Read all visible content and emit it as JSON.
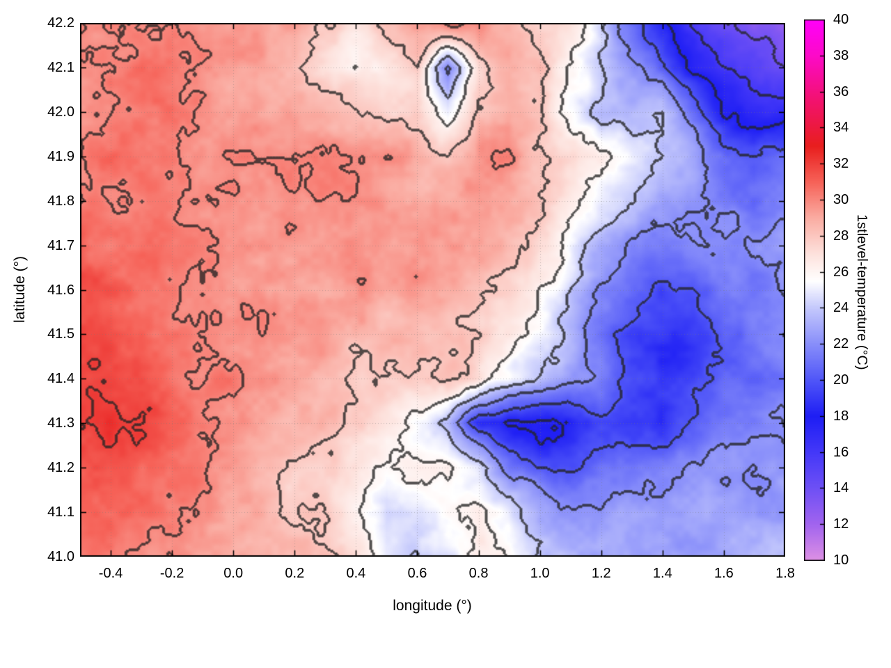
{
  "chart_data": {
    "type": "heatmap",
    "title": "",
    "xlabel": "longitude (°)",
    "ylabel": "latitude (°)",
    "colorbar_label": "1stlevel-temperature (°C)",
    "x_range": [
      -0.5,
      1.8
    ],
    "y_range": [
      41.0,
      42.2
    ],
    "color_range": [
      10,
      40
    ],
    "contour_interval": 2,
    "grid_lines": "dotted",
    "x_ticks": {
      "values": [
        -0.4,
        -0.2,
        0.0,
        0.2,
        0.4,
        0.6,
        0.8,
        1.0,
        1.2,
        1.4,
        1.6,
        1.8
      ],
      "labels": [
        "-0.4",
        "-0.2",
        "0.0",
        "0.2",
        "0.4",
        "0.6",
        "0.8",
        "1.0",
        "1.2",
        "1.4",
        "1.6",
        "1.8"
      ]
    },
    "y_ticks": {
      "values": [
        41.0,
        41.1,
        41.2,
        41.3,
        41.4,
        41.5,
        41.6,
        41.7,
        41.8,
        41.9,
        42.0,
        42.1,
        42.2
      ],
      "labels": [
        "41.0",
        "41.1",
        "41.2",
        "41.3",
        "41.4",
        "41.5",
        "41.6",
        "41.7",
        "41.8",
        "41.9",
        "42.0",
        "42.1",
        "42.2"
      ]
    },
    "colorbar_ticks": {
      "values": [
        10,
        12,
        14,
        16,
        18,
        20,
        22,
        24,
        26,
        28,
        30,
        32,
        34,
        36,
        38,
        40
      ],
      "labels": [
        "10",
        "12",
        "14",
        "16",
        "18",
        "20",
        "22",
        "24",
        "26",
        "28",
        "30",
        "32",
        "34",
        "36",
        "38",
        "40"
      ]
    },
    "grid": {
      "lon_min": -0.5,
      "lon_max": 1.8,
      "lon_step": 0.1,
      "lat_min": 41.0,
      "lat_max": 42.2,
      "lat_step": 0.1,
      "orientation": "rows run north (42.2) to south (41.0); columns run west (-0.5) to east (1.8); values are temperature in °C",
      "values": [
        [
          30,
          30,
          30,
          30,
          29.5,
          29.5,
          29,
          29,
          28,
          27.5,
          28.5,
          29,
          29.5,
          29.5,
          28.5,
          27.5,
          27,
          25,
          21,
          18,
          16,
          14,
          13,
          13
        ],
        [
          30,
          30,
          30.5,
          30,
          29.5,
          29,
          29,
          28.5,
          27.5,
          26,
          26.5,
          27.5,
          21,
          27,
          29,
          28.5,
          26,
          23.5,
          22,
          20,
          17,
          15.5,
          14.5,
          14
        ],
        [
          30,
          30,
          30,
          30,
          29.5,
          29,
          29,
          29,
          28.5,
          27.5,
          27,
          27.5,
          25,
          28.5,
          29,
          28,
          25.5,
          23.5,
          23,
          23.5,
          21,
          18,
          17,
          16.5
        ],
        [
          30,
          30.5,
          30,
          30,
          29.5,
          30,
          30,
          30.5,
          30.5,
          30,
          30,
          29.5,
          29,
          30,
          30,
          28,
          27,
          26,
          24.5,
          23.5,
          22.5,
          21,
          20,
          21
        ],
        [
          30,
          30,
          30,
          30,
          30,
          30,
          30,
          30,
          30,
          30,
          29.5,
          29,
          29,
          29.5,
          29,
          28,
          26,
          24.5,
          23.5,
          22.5,
          22,
          21.5,
          21,
          22
        ],
        [
          30.5,
          30,
          30,
          30,
          30,
          30,
          30,
          30,
          29.5,
          29,
          29,
          29.5,
          29.5,
          29,
          28,
          26.5,
          25,
          23,
          21.5,
          21,
          21.5,
          22,
          22,
          22.5
        ],
        [
          31.5,
          31,
          30.5,
          30,
          30,
          29.5,
          29.5,
          29.5,
          29,
          29,
          29,
          29.5,
          29,
          28.5,
          27.5,
          26,
          24,
          22,
          20.5,
          19.5,
          20,
          21,
          21.5,
          22
        ],
        [
          32,
          31.5,
          30.5,
          30,
          30,
          29.5,
          29.5,
          29,
          29,
          29,
          29,
          29,
          28.5,
          28,
          27,
          25.5,
          23.5,
          21.5,
          19.5,
          19,
          19.5,
          20.5,
          21,
          21.5
        ],
        [
          32,
          31.5,
          31,
          30.5,
          30,
          30,
          29.5,
          29,
          28.5,
          28,
          27.5,
          27.5,
          27.5,
          27,
          25.5,
          24,
          23,
          22,
          20,
          18.5,
          19,
          20.5,
          21,
          21.5
        ],
        [
          32,
          32.5,
          32,
          31,
          30.5,
          30,
          29.5,
          29,
          28.5,
          28,
          26.5,
          25,
          23.5,
          18.5,
          17.5,
          17.5,
          18.5,
          19.5,
          19,
          18.5,
          20,
          21.5,
          22,
          22.5
        ],
        [
          31.5,
          31.5,
          31,
          30.5,
          30,
          29.5,
          29,
          28.5,
          28,
          27,
          25.5,
          26.5,
          26.5,
          25,
          21,
          19.5,
          20,
          21,
          21.5,
          22,
          22,
          22.5,
          22.5,
          23
        ],
        [
          31,
          31,
          31,
          30.5,
          30,
          29.5,
          29,
          28.5,
          27.5,
          26,
          24,
          24.5,
          26,
          26.5,
          25,
          23,
          22.5,
          22.5,
          22.5,
          22.5,
          22.5,
          23,
          23,
          23
        ],
        [
          31,
          31,
          30.5,
          30.5,
          30,
          29.5,
          29,
          28.5,
          28,
          26.5,
          24.5,
          23.5,
          25,
          26.5,
          26,
          24,
          23,
          23,
          23,
          23,
          23,
          23,
          23.5,
          23.5
        ]
      ]
    },
    "palette_stops": [
      [
        10,
        [
          222,
          145,
          228
        ]
      ],
      [
        12,
        [
          162,
          100,
          238
        ]
      ],
      [
        14,
        [
          110,
          80,
          245
        ]
      ],
      [
        16,
        [
          68,
          56,
          248
        ]
      ],
      [
        18,
        [
          30,
          30,
          244
        ]
      ],
      [
        20,
        [
          80,
          86,
          248
        ]
      ],
      [
        22,
        [
          136,
          142,
          250
        ]
      ],
      [
        24,
        [
          196,
          200,
          252
        ]
      ],
      [
        25.5,
        [
          255,
          255,
          255
        ]
      ],
      [
        27,
        [
          253,
          226,
          221
        ]
      ],
      [
        29,
        [
          250,
          172,
          162
        ]
      ],
      [
        31,
        [
          246,
          98,
          88
        ]
      ],
      [
        33,
        [
          232,
          30,
          30
        ]
      ],
      [
        35.5,
        [
          242,
          18,
          110
        ]
      ],
      [
        38,
        [
          252,
          10,
          200
        ]
      ],
      [
        40,
        [
          255,
          0,
          250
        ]
      ]
    ]
  }
}
